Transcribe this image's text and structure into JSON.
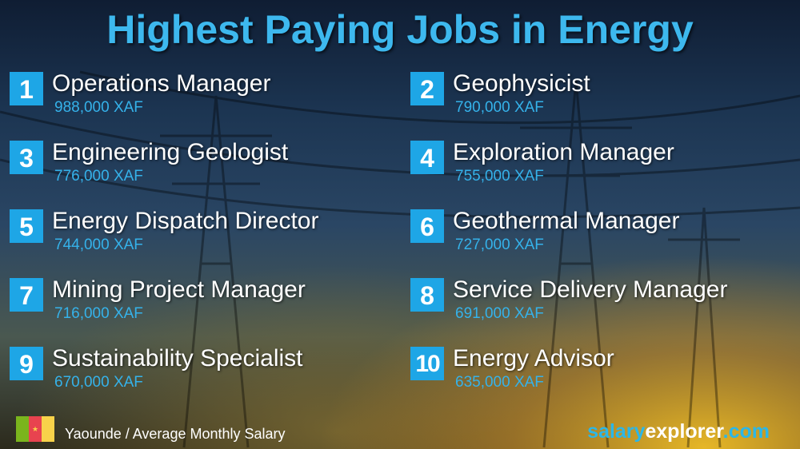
{
  "title": "Highest Paying Jobs in Energy",
  "jobs": [
    {
      "rank": "1",
      "name": "Operations Manager",
      "salary": "988,000 XAF"
    },
    {
      "rank": "2",
      "name": "Geophysicist",
      "salary": "790,000 XAF"
    },
    {
      "rank": "3",
      "name": "Engineering Geologist",
      "salary": "776,000 XAF"
    },
    {
      "rank": "4",
      "name": "Exploration Manager",
      "salary": "755,000 XAF"
    },
    {
      "rank": "5",
      "name": "Energy Dispatch Director",
      "salary": "744,000 XAF"
    },
    {
      "rank": "6",
      "name": "Geothermal Manager",
      "salary": "727,000 XAF"
    },
    {
      "rank": "7",
      "name": "Mining Project Manager",
      "salary": "716,000 XAF"
    },
    {
      "rank": "8",
      "name": "Service Delivery Manager",
      "salary": "691,000 XAF"
    },
    {
      "rank": "9",
      "name": "Sustainability Specialist",
      "salary": "670,000 XAF"
    },
    {
      "rank": "10",
      "name": "Energy Advisor",
      "salary": "635,000 XAF"
    }
  ],
  "footer": {
    "location": "Yaounde / Average Monthly Salary",
    "flag": "cameroon-flag",
    "flag_colors": [
      "#7ab51d",
      "#e8434f",
      "#f8d24a"
    ]
  },
  "brand": {
    "part1": "salary",
    "part2": "explorer",
    "part3": ".com"
  },
  "colors": {
    "accent": "#1ea6e6",
    "title": "#3db8ee"
  }
}
